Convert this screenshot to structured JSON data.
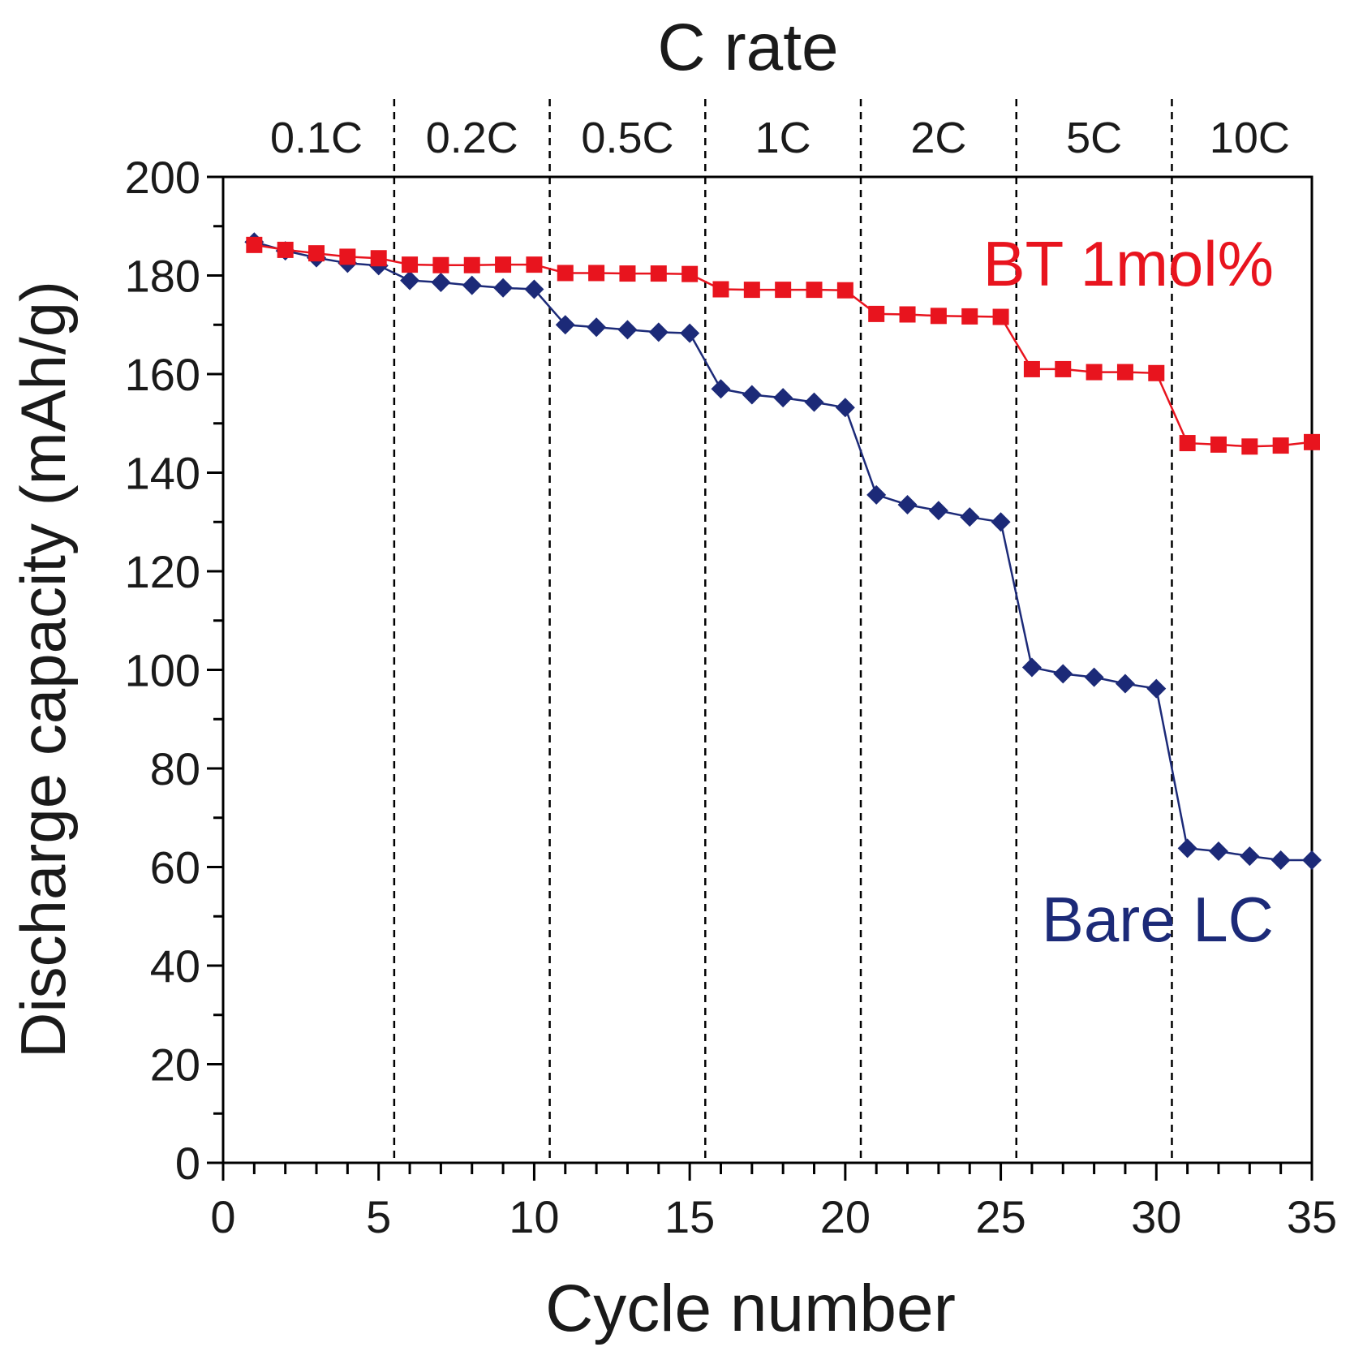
{
  "chart_data": {
    "type": "line",
    "title": "C rate",
    "xlabel": "Cycle number",
    "ylabel": "Discharge capacity (mAh/g)",
    "xlim": [
      0,
      35
    ],
    "ylim": [
      0,
      200
    ],
    "xticks": [
      "0",
      "5",
      "10",
      "15",
      "20",
      "25",
      "30",
      "35"
    ],
    "yticks": [
      "0",
      "20",
      "40",
      "60",
      "80",
      "100",
      "120",
      "140",
      "160",
      "180",
      "200"
    ],
    "grid": false,
    "legend": "inline labels (right side)",
    "rate_labels": [
      "0.1C",
      "0.2C",
      "0.5C",
      "1C",
      "2C",
      "5C",
      "10C"
    ],
    "rate_boundaries": [
      5.5,
      10.5,
      15.5,
      20.5,
      25.5,
      30.5
    ],
    "x": [
      1,
      2,
      3,
      4,
      5,
      6,
      7,
      8,
      9,
      10,
      11,
      12,
      13,
      14,
      15,
      16,
      17,
      18,
      19,
      20,
      21,
      22,
      23,
      24,
      25,
      26,
      27,
      28,
      29,
      30,
      31,
      32,
      33,
      34,
      35
    ],
    "series": [
      {
        "name": "BT 1mol%",
        "color": "#e8141e",
        "marker": "square",
        "values": [
          186.2,
          185.2,
          184.5,
          183.8,
          183.5,
          182.2,
          182.1,
          182.1,
          182.2,
          182.2,
          180.5,
          180.5,
          180.4,
          180.4,
          180.3,
          177.2,
          177.1,
          177.1,
          177.1,
          177.0,
          172.2,
          172.1,
          171.8,
          171.7,
          171.6,
          161.0,
          161.0,
          160.4,
          160.4,
          160.2,
          146.0,
          145.7,
          145.3,
          145.5,
          146.2
        ]
      },
      {
        "name": "Bare LC",
        "color": "#1c2a78",
        "marker": "diamond",
        "values": [
          186.8,
          185.0,
          183.6,
          182.5,
          182.0,
          179.0,
          178.6,
          178.0,
          177.5,
          177.2,
          170.0,
          169.5,
          169.0,
          168.5,
          168.3,
          157.0,
          155.8,
          155.2,
          154.3,
          153.2,
          135.5,
          133.5,
          132.3,
          131.0,
          130.0,
          100.5,
          99.2,
          98.5,
          97.2,
          96.2,
          63.8,
          63.2,
          62.2,
          61.4,
          61.4
        ]
      }
    ]
  }
}
